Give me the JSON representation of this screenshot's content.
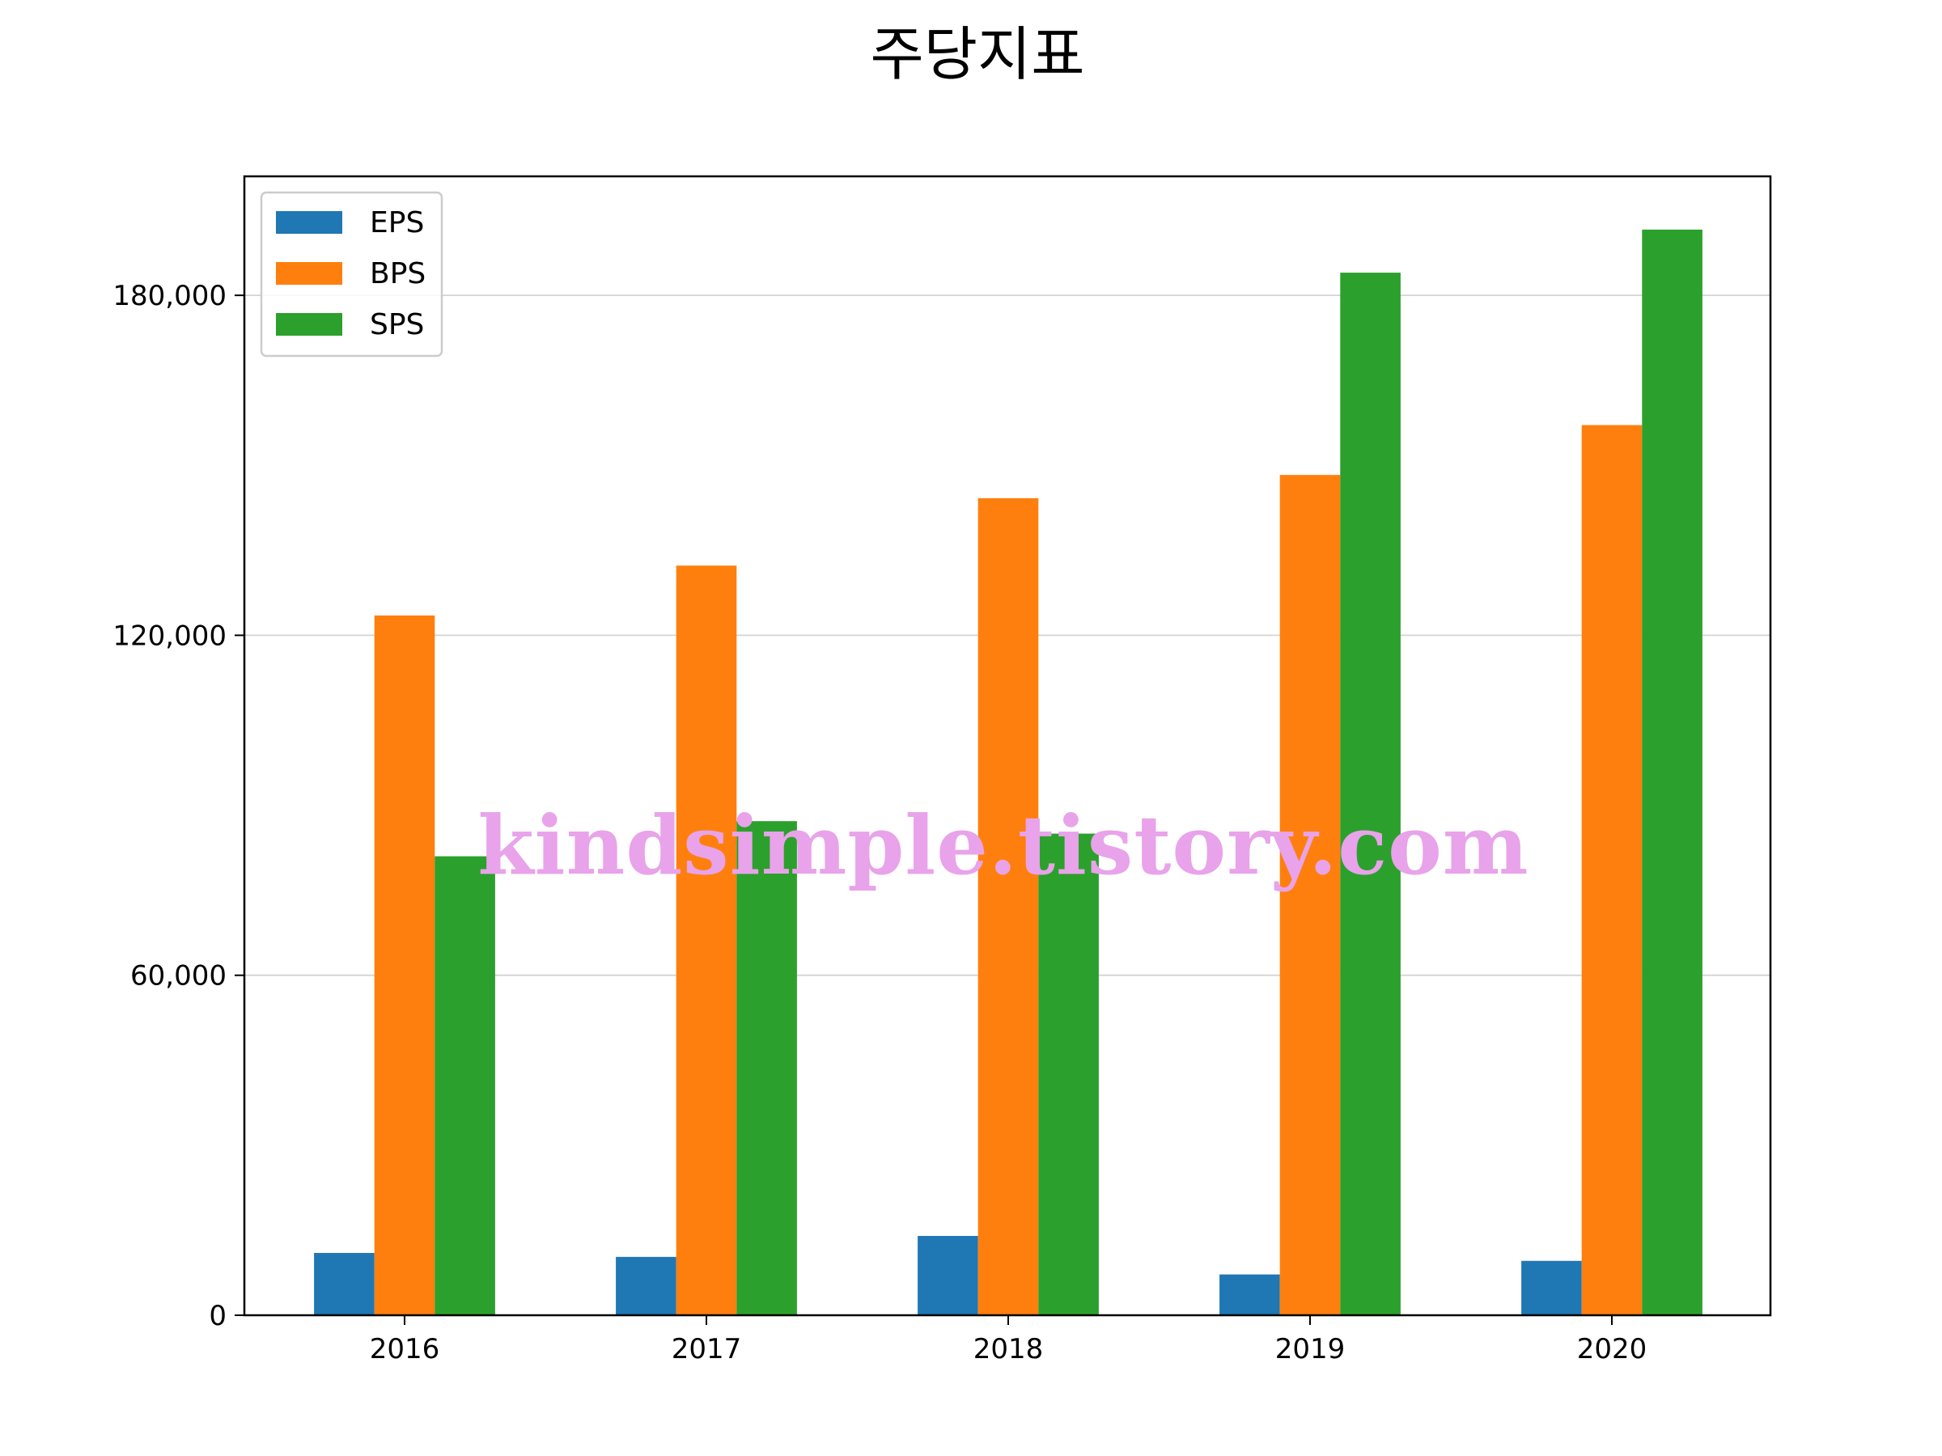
{
  "chart_data": {
    "type": "bar",
    "title": "주당지표",
    "xlabel": "",
    "ylabel": "",
    "categories": [
      "2016",
      "2017",
      "2018",
      "2019",
      "2020"
    ],
    "series": [
      {
        "name": "EPS",
        "color": "#1f77b4",
        "values": [
          11000,
          10300,
          14000,
          7200,
          9600
        ]
      },
      {
        "name": "BPS",
        "color": "#ff7f0e",
        "values": [
          123500,
          132300,
          144200,
          148300,
          157100
        ]
      },
      {
        "name": "SPS",
        "color": "#2ca02c",
        "values": [
          81000,
          87200,
          85000,
          184000,
          191600
        ]
      }
    ],
    "ylim": [
      0,
      201000
    ],
    "yticks": [
      0,
      60000,
      120000,
      180000
    ],
    "ytick_labels": [
      "0",
      "60,000",
      "120,000",
      "180,000"
    ],
    "grid": "y",
    "legend": "top-left",
    "watermark": "kindsimple.tistory.com"
  }
}
